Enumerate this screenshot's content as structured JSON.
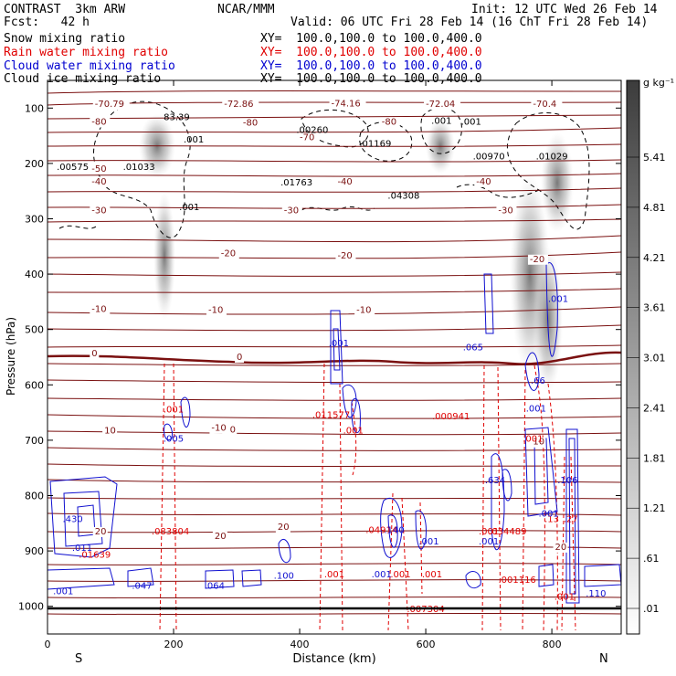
{
  "header": {
    "model": "CONTRAST  3km ARW",
    "center": "NCAR/MMM",
    "init": "Init: 12 UTC Wed 26 Feb 14",
    "fcst": "Fcst:   42 h",
    "valid": "Valid: 06 UTC Fri 28 Feb 14 (16 ChT Fri 28 Feb 14)"
  },
  "legend": [
    {
      "label": "Snow mixing ratio",
      "xy": "XY=  100.0,100.0 to 100.0,400.0",
      "color": "#000000"
    },
    {
      "label": "Rain water mixing ratio",
      "xy": "XY=  100.0,100.0 to 100.0,400.0",
      "color": "#e00000"
    },
    {
      "label": "Cloud water mixing ratio",
      "xy": "XY=  100.0,100.0 to 100.0,400.0",
      "color": "#0000d0"
    },
    {
      "label": "Cloud ice mixing ratio",
      "xy": "XY=  100.0,100.0 to 100.0,400.0",
      "color": "#000000"
    }
  ],
  "chart_data": {
    "type": "cross-section",
    "xlabel": "Distance (km)",
    "ylabel": "Pressure (hPa)",
    "xlim": [
      0,
      910
    ],
    "ylim": [
      1050,
      50
    ],
    "x_ticks": [
      "0",
      "200",
      "400",
      "600",
      "800"
    ],
    "y_ticks": [
      "100",
      "200",
      "300",
      "400",
      "500",
      "600",
      "700",
      "800",
      "900",
      "1000"
    ],
    "left_end": "S",
    "right_end": "N",
    "colorbar": {
      "unit": "g kg⁻¹",
      "labels": [
        "5.41",
        "4.81",
        "4.21",
        "3.61",
        "3.01",
        "2.41",
        "1.81",
        "1.21",
        ".61",
        ".01"
      ]
    },
    "temperature_contours": [
      {
        "label": "-70.79",
        "x": 75,
        "p": 98
      },
      {
        "label": "-72.86",
        "x": 280,
        "p": 98
      },
      {
        "label": "-74.16",
        "x": 450,
        "p": 97
      },
      {
        "label": "-72.04",
        "x": 600,
        "p": 98
      },
      {
        "label": "-70.4",
        "x": 770,
        "p": 98
      },
      {
        "label": "-80",
        "x": 70,
        "p": 130
      },
      {
        "label": "-80",
        "x": 310,
        "p": 132
      },
      {
        "label": "-80",
        "x": 530,
        "p": 130
      },
      {
        "label": "-70",
        "x": 400,
        "p": 158
      },
      {
        "label": "-50",
        "x": 70,
        "p": 215
      },
      {
        "label": "-40",
        "x": 70,
        "p": 238
      },
      {
        "label": "-40",
        "x": 460,
        "p": 238
      },
      {
        "label": "-40",
        "x": 680,
        "p": 238
      },
      {
        "label": "-30",
        "x": 70,
        "p": 290
      },
      {
        "label": "-30",
        "x": 375,
        "p": 290
      },
      {
        "label": "-30",
        "x": 715,
        "p": 290
      },
      {
        "label": "-20",
        "x": 275,
        "p": 368
      },
      {
        "label": "-20",
        "x": 460,
        "p": 372
      },
      {
        "label": "-20",
        "x": 765,
        "p": 378
      },
      {
        "label": "-10",
        "x": 70,
        "p": 468
      },
      {
        "label": "-10",
        "x": 255,
        "p": 470
      },
      {
        "label": "-10",
        "x": 490,
        "p": 470
      },
      {
        "label": "0",
        "x": 70,
        "p": 548
      },
      {
        "label": "0",
        "x": 300,
        "p": 555
      },
      {
        "label": "10",
        "x": 90,
        "p": 688
      },
      {
        "label": "10",
        "x": 280,
        "p": 686
      },
      {
        "label": "-10",
        "x": 260,
        "p": 683
      },
      {
        "label": "10",
        "x": 770,
        "p": 708
      },
      {
        "label": "20",
        "x": 75,
        "p": 870
      },
      {
        "label": "20",
        "x": 265,
        "p": 878
      },
      {
        "label": "20",
        "x": 365,
        "p": 862
      },
      {
        "label": "20",
        "x": 805,
        "p": 898
      }
    ],
    "extrema_labels": [
      {
        "text": "83.39",
        "x": 205,
        "p": 122,
        "color": "black"
      },
      {
        "text": ".001",
        "x": 232,
        "p": 162,
        "color": "black"
      },
      {
        "text": ".00260",
        "x": 420,
        "p": 145,
        "color": "black"
      },
      {
        "text": ".01169",
        "x": 520,
        "p": 170,
        "color": "black"
      },
      {
        "text": ".001",
        "x": 625,
        "p": 128,
        "color": "black"
      },
      {
        "text": ".001",
        "x": 672,
        "p": 130,
        "color": "black"
      },
      {
        "text": ".00575",
        "x": 40,
        "p": 212,
        "color": "black"
      },
      {
        "text": ".01033",
        "x": 145,
        "p": 212,
        "color": "black"
      },
      {
        "text": ".01763",
        "x": 395,
        "p": 240,
        "color": "black"
      },
      {
        "text": ".04308",
        "x": 565,
        "p": 264,
        "color": "black"
      },
      {
        "text": ".00970",
        "x": 700,
        "p": 193,
        "color": "black"
      },
      {
        "text": ".01029",
        "x": 800,
        "p": 193,
        "color": "black"
      },
      {
        "text": ".001",
        "x": 225,
        "p": 284,
        "color": "black"
      },
      {
        "text": ".001",
        "x": 200,
        "p": 650,
        "color": "red"
      },
      {
        "text": ".011577",
        "x": 450,
        "p": 660,
        "color": "red"
      },
      {
        "text": ".001",
        "x": 485,
        "p": 688,
        "color": "red"
      },
      {
        "text": ".000941",
        "x": 640,
        "p": 662,
        "color": "red"
      },
      {
        "text": ".083804",
        "x": 195,
        "p": 870,
        "color": "red"
      },
      {
        "text": ".01639",
        "x": 75,
        "p": 912,
        "color": "red"
      },
      {
        "text": ".04914",
        "x": 530,
        "p": 868,
        "color": "red"
      },
      {
        "text": ".001",
        "x": 455,
        "p": 948,
        "color": "red"
      },
      {
        "text": ".007304",
        "x": 600,
        "p": 1010,
        "color": "red"
      },
      {
        "text": ".034489",
        "x": 730,
        "p": 870,
        "color": "red"
      },
      {
        "text": ".001116",
        "x": 745,
        "p": 958,
        "color": "red"
      },
      {
        "text": ".001",
        "x": 820,
        "p": 988,
        "color": "red"
      },
      {
        "text": ".001",
        "x": 770,
        "p": 703,
        "color": "red"
      },
      {
        "text": ".13",
        "x": 800,
        "p": 848,
        "color": "red"
      },
      {
        "text": ".27",
        "x": 830,
        "p": 848,
        "color": "red"
      },
      {
        "text": ".001",
        "x": 560,
        "p": 948,
        "color": "red"
      },
      {
        "text": ".001",
        "x": 610,
        "p": 948,
        "color": "red"
      },
      {
        "text": ".001",
        "x": 700,
        "p": 870,
        "color": "red"
      },
      {
        "text": ".430",
        "x": 40,
        "p": 848,
        "color": "blue"
      },
      {
        "text": ".011",
        "x": 55,
        "p": 900,
        "color": "blue"
      },
      {
        "text": ".001",
        "x": 25,
        "p": 978,
        "color": "blue"
      },
      {
        "text": ".047",
        "x": 150,
        "p": 968,
        "color": "blue"
      },
      {
        "text": ".064",
        "x": 265,
        "p": 968,
        "color": "blue"
      },
      {
        "text": ".100",
        "x": 375,
        "p": 950,
        "color": "blue"
      },
      {
        "text": ".005",
        "x": 200,
        "p": 703,
        "color": "blue"
      },
      {
        "text": ".001",
        "x": 462,
        "p": 530,
        "color": "blue"
      },
      {
        "text": ".065",
        "x": 675,
        "p": 538,
        "color": "blue"
      },
      {
        "text": ".001",
        "x": 810,
        "p": 450,
        "color": "blue"
      },
      {
        "text": ".66",
        "x": 778,
        "p": 598,
        "color": "blue"
      },
      {
        "text": ".001",
        "x": 775,
        "p": 648,
        "color": "blue"
      },
      {
        "text": ".634",
        "x": 710,
        "p": 778,
        "color": "blue"
      },
      {
        "text": ".106",
        "x": 825,
        "p": 778,
        "color": "blue"
      },
      {
        "text": ".001",
        "x": 700,
        "p": 888,
        "color": "blue"
      },
      {
        "text": ".001",
        "x": 605,
        "p": 888,
        "color": "blue"
      },
      {
        "text": ".140",
        "x": 550,
        "p": 868,
        "color": "blue"
      },
      {
        "text": ".001",
        "x": 530,
        "p": 948,
        "color": "blue"
      },
      {
        "text": ".110",
        "x": 870,
        "p": 982,
        "color": "blue"
      },
      {
        "text": ".001",
        "x": 795,
        "p": 838,
        "color": "blue"
      }
    ]
  }
}
